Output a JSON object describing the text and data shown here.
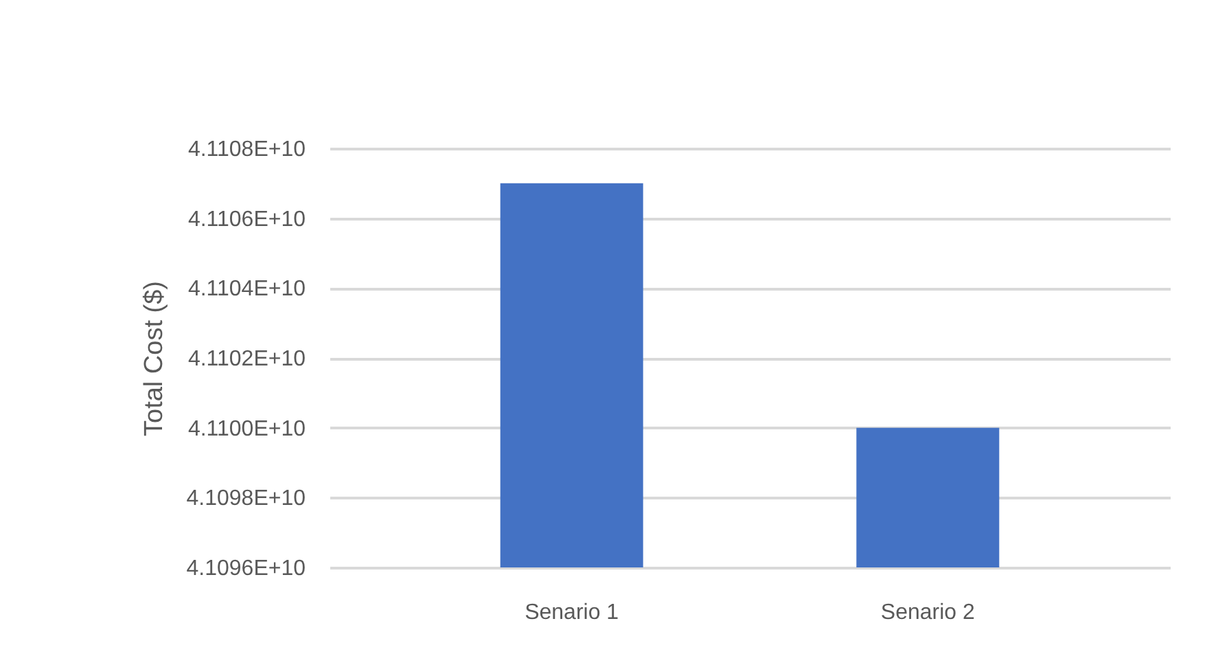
{
  "chart_data": {
    "type": "bar",
    "ylabel": "Total Cost ($)",
    "categories": [
      "Senario 1",
      "Senario 2"
    ],
    "values": [
      41107000000,
      41100000000
    ],
    "color": "#4472c4",
    "ylim": [
      41096000000,
      41108000000
    ],
    "yticks": [
      {
        "value": 41096000000,
        "label": "4.1096E+10"
      },
      {
        "value": 41098000000,
        "label": "4.1098E+10"
      },
      {
        "value": 41100000000,
        "label": "4.1100E+10"
      },
      {
        "value": 41102000000,
        "label": "4.1102E+10"
      },
      {
        "value": 41104000000,
        "label": "4.1104E+10"
      },
      {
        "value": 41106000000,
        "label": "4.1106E+10"
      },
      {
        "value": 41108000000,
        "label": "4.1108E+10"
      }
    ],
    "grid": "y"
  }
}
